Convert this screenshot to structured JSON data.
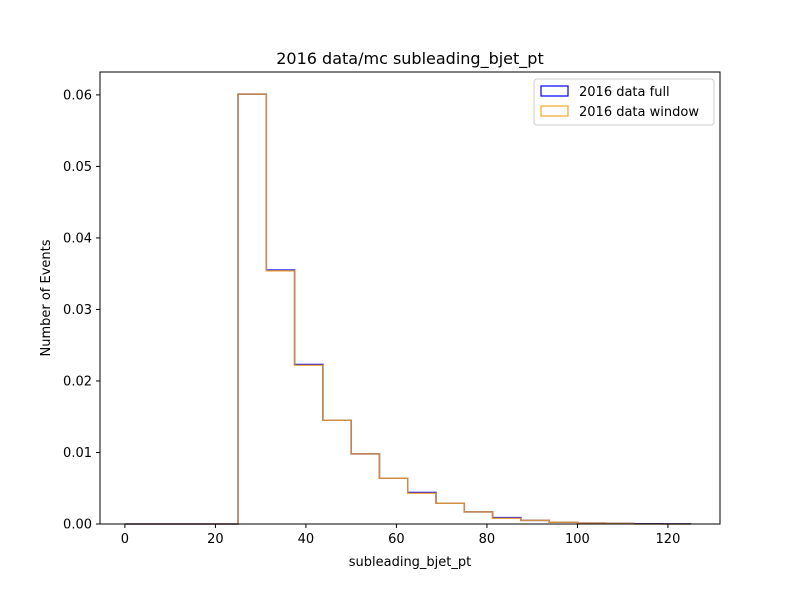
{
  "chart_data": {
    "type": "histogram-step",
    "title": "2016 data/mc subleading_bjet_pt",
    "xlabel": "subleading_bjet_pt",
    "ylabel": "Number of Events",
    "xlim": [
      -5.5,
      131.5
    ],
    "ylim": [
      0,
      0.0632
    ],
    "xticks": [
      0,
      20,
      40,
      60,
      80,
      100,
      120
    ],
    "xtick_labels": [
      "0",
      "20",
      "40",
      "60",
      "80",
      "100",
      "120"
    ],
    "yticks": [
      0,
      0.01,
      0.02,
      0.03,
      0.04,
      0.05,
      0.06
    ],
    "ytick_labels": [
      "0.00",
      "0.01",
      "0.02",
      "0.03",
      "0.04",
      "0.05",
      "0.06"
    ],
    "grid": false,
    "legend_position": "top-right",
    "bin_edges": [
      0,
      6.25,
      12.5,
      18.75,
      25,
      31.25,
      37.5,
      43.75,
      50,
      56.25,
      62.5,
      68.75,
      75,
      81.25,
      87.5,
      93.75,
      100,
      106.25,
      112.5,
      118.75,
      125
    ],
    "series": [
      {
        "name": "2016 data full",
        "color": "#0000ff",
        "values": [
          0,
          0,
          0,
          0,
          0.0601,
          0.0355,
          0.0223,
          0.0145,
          0.0098,
          0.0064,
          0.0044,
          0.0029,
          0.0017,
          0.0009,
          0.0005,
          0.00025,
          0.00012,
          7e-05,
          3e-05,
          1e-05
        ]
      },
      {
        "name": "2016 data window",
        "color": "#f5a623",
        "values": [
          0,
          0,
          0,
          0,
          0.0601,
          0.0354,
          0.0222,
          0.0145,
          0.0098,
          0.0064,
          0.0043,
          0.0029,
          0.0017,
          0.0008,
          0.0005,
          0.00025,
          0.00012,
          7e-05,
          0,
          0
        ]
      }
    ]
  }
}
